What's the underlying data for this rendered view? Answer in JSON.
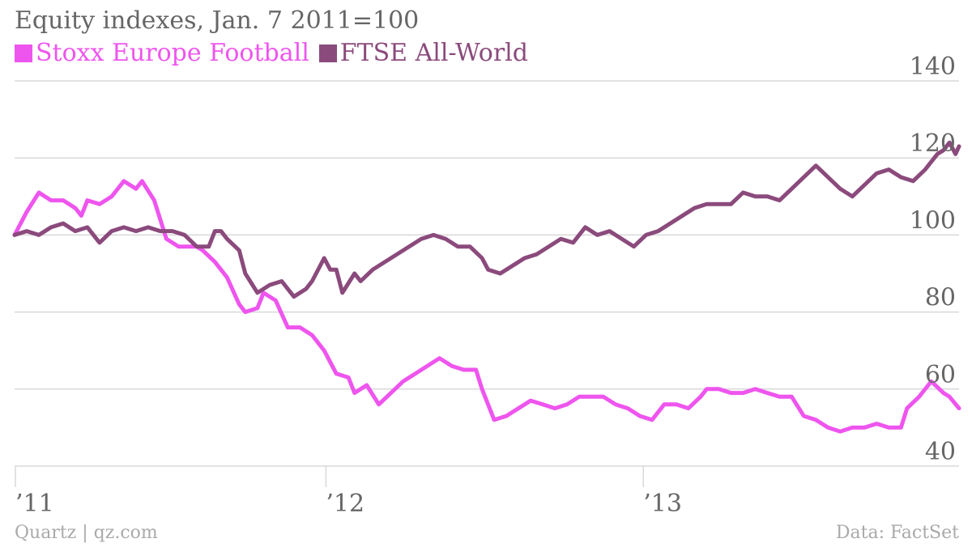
{
  "chart_data": {
    "type": "line",
    "title": "Equity indexes, Jan. 7 2011=100",
    "ylim": [
      40,
      140
    ],
    "xlim": [
      "2011-01-07",
      "2013-12-31"
    ],
    "y_ticks": [
      "140",
      "120",
      "100",
      "80",
      "60",
      "40"
    ],
    "x_ticks": [
      {
        "label": "’11",
        "date": "2011-01-01"
      },
      {
        "label": "’12",
        "date": "2012-01-01"
      },
      {
        "label": "’13",
        "date": "2013-01-01"
      }
    ],
    "grid": true,
    "legend_position": "top-left",
    "series": [
      {
        "name": "Stoxx Europe Football",
        "color": "#ee55ee",
        "points": [
          [
            "2011-01-07",
            100
          ],
          [
            "2011-01-21",
            106
          ],
          [
            "2011-02-04",
            111
          ],
          [
            "2011-02-18",
            109
          ],
          [
            "2011-03-04",
            109
          ],
          [
            "2011-03-18",
            107
          ],
          [
            "2011-03-25",
            105
          ],
          [
            "2011-04-01",
            109
          ],
          [
            "2011-04-15",
            108
          ],
          [
            "2011-04-29",
            110
          ],
          [
            "2011-05-13",
            114
          ],
          [
            "2011-05-27",
            112
          ],
          [
            "2011-06-03",
            114
          ],
          [
            "2011-06-17",
            109
          ],
          [
            "2011-07-01",
            99
          ],
          [
            "2011-07-15",
            97
          ],
          [
            "2011-08-05",
            97
          ],
          [
            "2011-08-12",
            96
          ],
          [
            "2011-08-26",
            93
          ],
          [
            "2011-09-09",
            89
          ],
          [
            "2011-09-23",
            82
          ],
          [
            "2011-09-30",
            80
          ],
          [
            "2011-10-14",
            81
          ],
          [
            "2011-10-21",
            85
          ],
          [
            "2011-11-04",
            83
          ],
          [
            "2011-11-18",
            76
          ],
          [
            "2011-12-02",
            76
          ],
          [
            "2011-12-16",
            74
          ],
          [
            "2011-12-30",
            70
          ],
          [
            "2012-01-13",
            64
          ],
          [
            "2012-01-27",
            63
          ],
          [
            "2012-02-03",
            59
          ],
          [
            "2012-02-17",
            61
          ],
          [
            "2012-03-02",
            56
          ],
          [
            "2012-03-16",
            59
          ],
          [
            "2012-03-30",
            62
          ],
          [
            "2012-04-13",
            64
          ],
          [
            "2012-04-27",
            66
          ],
          [
            "2012-05-11",
            68
          ],
          [
            "2012-05-25",
            66
          ],
          [
            "2012-06-08",
            65
          ],
          [
            "2012-06-22",
            65
          ],
          [
            "2012-06-29",
            60
          ],
          [
            "2012-07-13",
            52
          ],
          [
            "2012-07-27",
            53
          ],
          [
            "2012-08-10",
            55
          ],
          [
            "2012-08-24",
            57
          ],
          [
            "2012-09-07",
            56
          ],
          [
            "2012-09-21",
            55
          ],
          [
            "2012-10-05",
            56
          ],
          [
            "2012-10-19",
            58
          ],
          [
            "2012-11-02",
            58
          ],
          [
            "2012-11-16",
            58
          ],
          [
            "2012-11-30",
            56
          ],
          [
            "2012-12-14",
            55
          ],
          [
            "2012-12-28",
            53
          ],
          [
            "2013-01-11",
            52
          ],
          [
            "2013-01-25",
            56
          ],
          [
            "2013-02-08",
            56
          ],
          [
            "2013-02-22",
            55
          ],
          [
            "2013-03-08",
            58
          ],
          [
            "2013-03-15",
            60
          ],
          [
            "2013-03-29",
            60
          ],
          [
            "2013-04-12",
            59
          ],
          [
            "2013-04-26",
            59
          ],
          [
            "2013-05-10",
            60
          ],
          [
            "2013-05-24",
            59
          ],
          [
            "2013-06-07",
            58
          ],
          [
            "2013-06-21",
            58
          ],
          [
            "2013-07-05",
            53
          ],
          [
            "2013-07-19",
            52
          ],
          [
            "2013-08-02",
            50
          ],
          [
            "2013-08-16",
            49
          ],
          [
            "2013-08-30",
            50
          ],
          [
            "2013-09-13",
            50
          ],
          [
            "2013-09-27",
            51
          ],
          [
            "2013-10-11",
            50
          ],
          [
            "2013-10-25",
            50
          ],
          [
            "2013-11-01",
            55
          ],
          [
            "2013-11-15",
            58
          ],
          [
            "2013-11-29",
            62
          ],
          [
            "2013-12-13",
            59
          ],
          [
            "2013-12-20",
            58
          ],
          [
            "2013-12-31",
            55
          ]
        ]
      },
      {
        "name": "FTSE All-World",
        "color": "#8b4a7c",
        "points": [
          [
            "2011-01-07",
            100
          ],
          [
            "2011-01-21",
            101
          ],
          [
            "2011-02-04",
            100
          ],
          [
            "2011-02-18",
            102
          ],
          [
            "2011-03-04",
            103
          ],
          [
            "2011-03-18",
            101
          ],
          [
            "2011-04-01",
            102
          ],
          [
            "2011-04-15",
            98
          ],
          [
            "2011-04-29",
            101
          ],
          [
            "2011-05-13",
            102
          ],
          [
            "2011-05-27",
            101
          ],
          [
            "2011-06-10",
            102
          ],
          [
            "2011-06-24",
            101
          ],
          [
            "2011-07-08",
            101
          ],
          [
            "2011-07-22",
            100
          ],
          [
            "2011-08-05",
            97
          ],
          [
            "2011-08-19",
            97
          ],
          [
            "2011-08-26",
            101
          ],
          [
            "2011-09-02",
            101
          ],
          [
            "2011-09-09",
            99
          ],
          [
            "2011-09-23",
            96
          ],
          [
            "2011-09-30",
            90
          ],
          [
            "2011-10-14",
            85
          ],
          [
            "2011-10-28",
            87
          ],
          [
            "2011-11-11",
            88
          ],
          [
            "2011-11-25",
            84
          ],
          [
            "2011-12-09",
            86
          ],
          [
            "2011-12-16",
            88
          ],
          [
            "2011-12-30",
            94
          ],
          [
            "2012-01-06",
            91
          ],
          [
            "2012-01-13",
            91
          ],
          [
            "2012-01-20",
            85
          ],
          [
            "2012-02-03",
            90
          ],
          [
            "2012-02-10",
            88
          ],
          [
            "2012-02-24",
            91
          ],
          [
            "2012-03-09",
            93
          ],
          [
            "2012-03-23",
            95
          ],
          [
            "2012-04-06",
            97
          ],
          [
            "2012-04-20",
            99
          ],
          [
            "2012-05-04",
            100
          ],
          [
            "2012-05-18",
            99
          ],
          [
            "2012-06-01",
            97
          ],
          [
            "2012-06-15",
            97
          ],
          [
            "2012-06-29",
            94
          ],
          [
            "2012-07-06",
            91
          ],
          [
            "2012-07-20",
            90
          ],
          [
            "2012-08-03",
            92
          ],
          [
            "2012-08-17",
            94
          ],
          [
            "2012-08-31",
            95
          ],
          [
            "2012-09-14",
            97
          ],
          [
            "2012-09-28",
            99
          ],
          [
            "2012-10-12",
            98
          ],
          [
            "2012-10-26",
            102
          ],
          [
            "2012-11-09",
            100
          ],
          [
            "2012-11-23",
            101
          ],
          [
            "2012-12-07",
            99
          ],
          [
            "2012-12-21",
            97
          ],
          [
            "2013-01-04",
            100
          ],
          [
            "2013-01-18",
            101
          ],
          [
            "2013-02-01",
            103
          ],
          [
            "2013-02-15",
            105
          ],
          [
            "2013-03-01",
            107
          ],
          [
            "2013-03-15",
            108
          ],
          [
            "2013-03-29",
            108
          ],
          [
            "2013-04-12",
            108
          ],
          [
            "2013-04-26",
            111
          ],
          [
            "2013-05-10",
            110
          ],
          [
            "2013-05-24",
            110
          ],
          [
            "2013-06-07",
            109
          ],
          [
            "2013-06-21",
            112
          ],
          [
            "2013-07-05",
            115
          ],
          [
            "2013-07-19",
            118
          ],
          [
            "2013-08-02",
            115
          ],
          [
            "2013-08-16",
            112
          ],
          [
            "2013-08-30",
            110
          ],
          [
            "2013-09-13",
            113
          ],
          [
            "2013-09-27",
            116
          ],
          [
            "2013-10-11",
            117
          ],
          [
            "2013-10-25",
            115
          ],
          [
            "2013-11-08",
            114
          ],
          [
            "2013-11-22",
            117
          ],
          [
            "2013-12-06",
            121
          ],
          [
            "2013-12-13",
            122
          ],
          [
            "2013-12-20",
            124
          ],
          [
            "2013-12-27",
            121
          ],
          [
            "2013-12-31",
            123
          ]
        ]
      }
    ]
  },
  "footer": {
    "left": "Quartz | qz.com",
    "right": "Data: FactSet"
  },
  "colors": {
    "grid": "#d9d9d9",
    "text": "#666666",
    "muted": "#aaaaaa"
  }
}
